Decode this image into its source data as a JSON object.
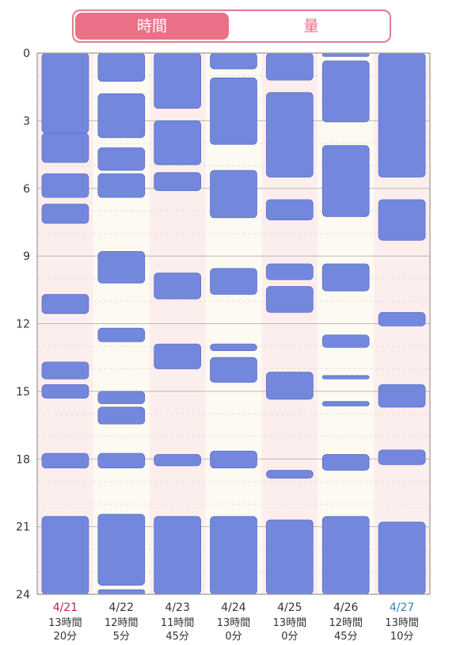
{
  "tabs": [
    {
      "label": "時間",
      "active": true
    },
    {
      "label": "量",
      "active": false
    }
  ],
  "colors": {
    "accent": "#eb7088",
    "bar": "#7388dd",
    "col_odd": "#fdeeee",
    "col_even": "#fdfbf1",
    "weekend_sun": "#c0264b",
    "weekend_sat": "#3b7fa6"
  },
  "chart_data": {
    "type": "sleep-timeline",
    "y_range": [
      0,
      24
    ],
    "y_ticks": [
      "0",
      "3",
      "6",
      "9",
      "12",
      "15",
      "18",
      "21",
      "24"
    ],
    "days": [
      {
        "date": "4/21",
        "duration": [
          "13時間",
          "20分"
        ],
        "color": "sun",
        "blocks": [
          [
            0,
            3.55
          ],
          [
            3.55,
            4.85
          ],
          [
            5.35,
            6.4
          ],
          [
            6.7,
            7.55
          ],
          [
            10.7,
            11.55
          ],
          [
            13.7,
            14.45
          ],
          [
            14.7,
            15.3
          ],
          [
            17.75,
            18.4
          ],
          [
            20.55,
            24
          ]
        ]
      },
      {
        "date": "4/22",
        "duration": [
          "12時間",
          "5分"
        ],
        "color": "normal",
        "blocks": [
          [
            0,
            1.25
          ],
          [
            1.8,
            3.75
          ],
          [
            4.2,
            5.2
          ],
          [
            5.35,
            6.4
          ],
          [
            8.8,
            10.2
          ],
          [
            12.2,
            12.8
          ],
          [
            15,
            15.55
          ],
          [
            15.7,
            16.45
          ],
          [
            17.75,
            18.4
          ],
          [
            20.45,
            23.6
          ],
          [
            23.8,
            24
          ]
        ]
      },
      {
        "date": "4/23",
        "duration": [
          "11時間",
          "45分"
        ],
        "color": "normal",
        "blocks": [
          [
            0,
            2.45
          ],
          [
            3,
            4.95
          ],
          [
            5.3,
            6.1
          ],
          [
            9.75,
            10.9
          ],
          [
            12.9,
            14
          ],
          [
            17.8,
            18.3
          ],
          [
            20.55,
            24
          ]
        ]
      },
      {
        "date": "4/24",
        "duration": [
          "13時間",
          "0分"
        ],
        "color": "normal",
        "blocks": [
          [
            0,
            0.7
          ],
          [
            1.1,
            4.05
          ],
          [
            5.2,
            7.3
          ],
          [
            9.55,
            10.7
          ],
          [
            12.9,
            13.2
          ],
          [
            13.5,
            14.6
          ],
          [
            17.65,
            18.4
          ],
          [
            20.55,
            24
          ]
        ]
      },
      {
        "date": "4/25",
        "duration": [
          "13時間",
          "0分"
        ],
        "color": "normal",
        "blocks": [
          [
            0,
            1.2
          ],
          [
            1.75,
            5.5
          ],
          [
            6.5,
            7.4
          ],
          [
            9.35,
            10.05
          ],
          [
            10.35,
            11.5
          ],
          [
            14.15,
            15.35
          ],
          [
            18.5,
            18.85
          ],
          [
            20.7,
            24
          ]
        ]
      },
      {
        "date": "4/26",
        "duration": [
          "12時間",
          "45分"
        ],
        "color": "normal",
        "blocks": [
          [
            0,
            0.15
          ],
          [
            0.35,
            3.05
          ],
          [
            4.1,
            7.25
          ],
          [
            9.35,
            10.55
          ],
          [
            12.5,
            13.05
          ],
          [
            14.3,
            14.45
          ],
          [
            15.45,
            15.65
          ],
          [
            17.8,
            18.5
          ],
          [
            20.55,
            24
          ]
        ]
      },
      {
        "date": "4/27",
        "duration": [
          "13時間",
          "10分"
        ],
        "color": "sat",
        "blocks": [
          [
            0,
            5.5
          ],
          [
            6.5,
            8.3
          ],
          [
            11.5,
            12.1
          ],
          [
            14.7,
            15.7
          ],
          [
            17.6,
            18.25
          ],
          [
            20.8,
            24
          ]
        ]
      }
    ]
  }
}
